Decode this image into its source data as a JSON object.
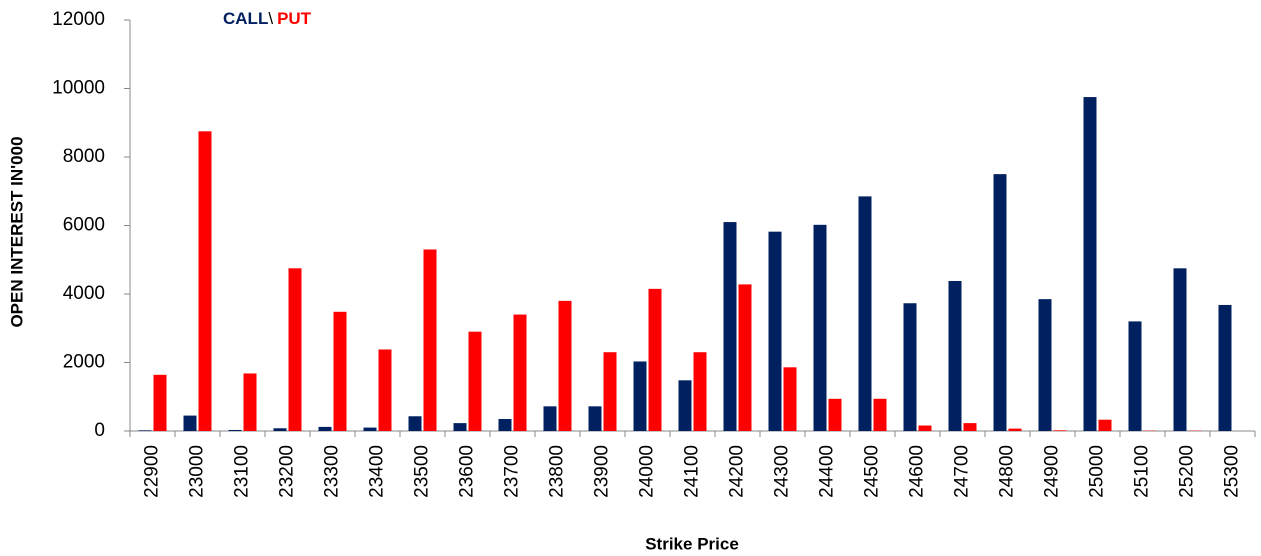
{
  "chart_data": {
    "type": "bar",
    "title_separator": "\\",
    "x_label": "Strike Price",
    "y_label": "OPEN INTEREST IN'000",
    "categories": [
      "22900",
      "23000",
      "23100",
      "23200",
      "23300",
      "23400",
      "23500",
      "23600",
      "23700",
      "23800",
      "23900",
      "24000",
      "24100",
      "24200",
      "24300",
      "24400",
      "24500",
      "24600",
      "24700",
      "24800",
      "24900",
      "25000",
      "25100",
      "25200",
      "25300"
    ],
    "series": [
      {
        "name": "CALL",
        "color": "#002060",
        "values": [
          20,
          450,
          30,
          80,
          120,
          100,
          430,
          230,
          350,
          720,
          720,
          2030,
          1480,
          6100,
          5820,
          6020,
          6850,
          3730,
          4380,
          7500,
          3850,
          9750,
          3200,
          4750,
          3680
        ]
      },
      {
        "name": "PUT",
        "color": "#ff0000",
        "values": [
          1640,
          8750,
          1680,
          4750,
          3480,
          2380,
          5300,
          2900,
          3400,
          3800,
          2300,
          4150,
          2300,
          4280,
          1860,
          940,
          940,
          160,
          230,
          70,
          20,
          330,
          10,
          10,
          0
        ]
      }
    ],
    "ylim": [
      0,
      12000
    ],
    "yticks": [
      0,
      2000,
      4000,
      6000,
      8000,
      10000,
      12000
    ],
    "grid": false
  }
}
